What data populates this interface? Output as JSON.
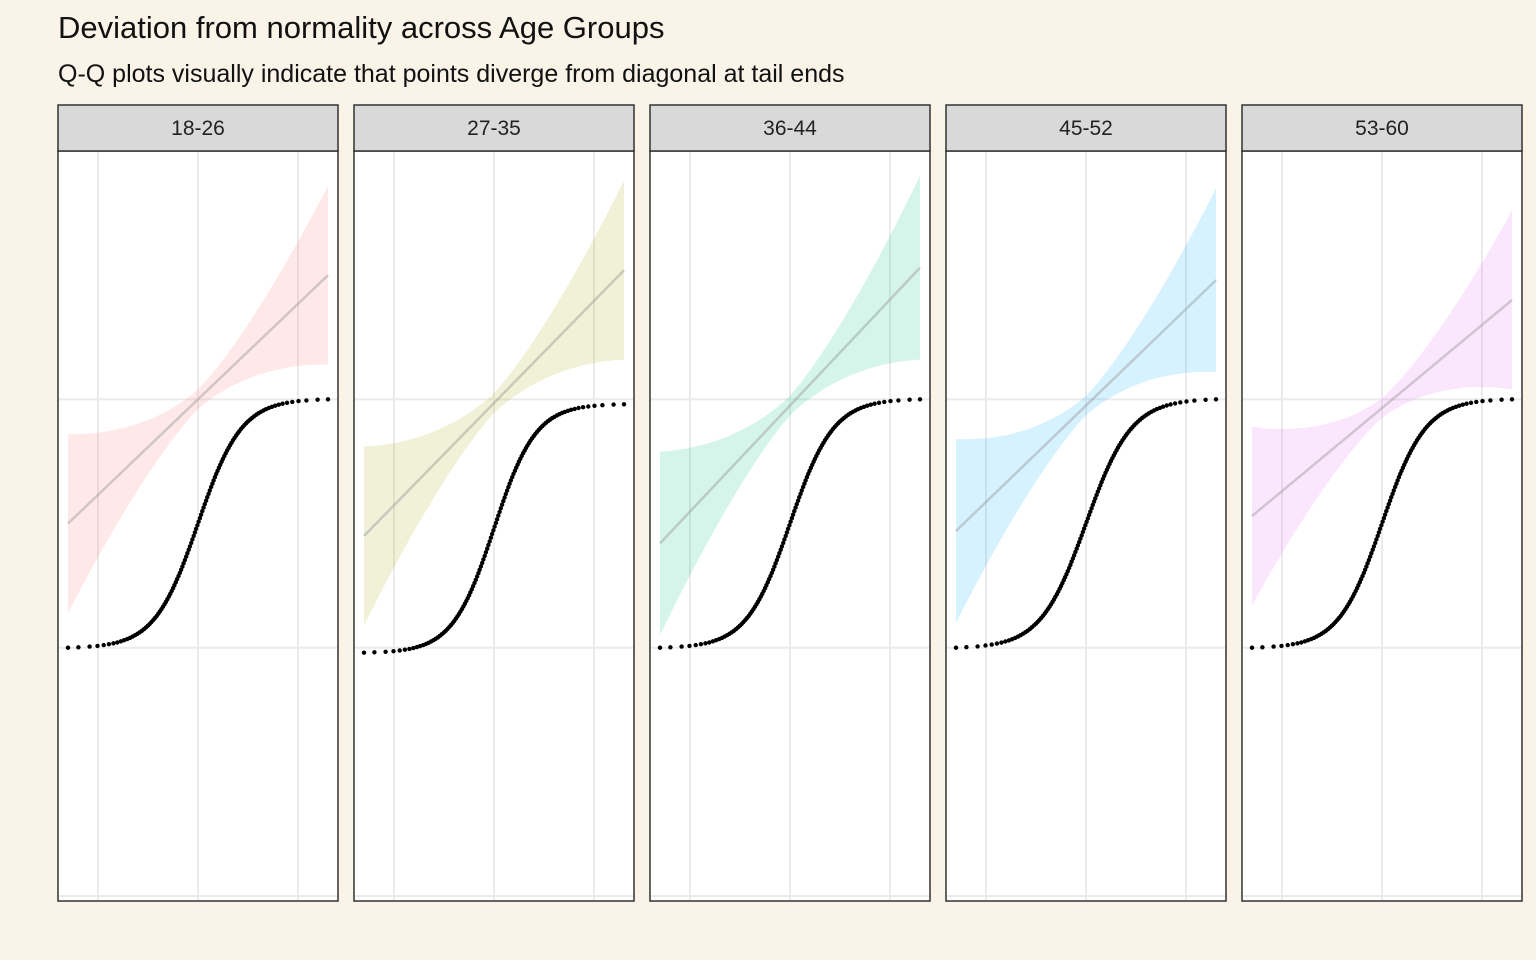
{
  "chart_data": {
    "type": "scatter",
    "title": "Deviation from normality across Age Groups",
    "subtitle": "Q-Q plots visually indicate that points diverge from diagonal at tail ends",
    "xlabel": "",
    "ylabel": "",
    "grid": true,
    "legend": "none",
    "xlim": [
      -2.8,
      2.8
    ],
    "ylim": [
      0.98,
      4.0
    ],
    "xbreaks": [
      -2,
      0,
      2
    ],
    "ybreaks": [
      1,
      2,
      3
    ],
    "series": [
      {
        "name": "18-26",
        "color": "#F8766D",
        "x_range": [
          -2.6,
          2.6
        ],
        "y_min": 2.0,
        "y_max": 3.0,
        "center": 2.55,
        "spread": 0.42,
        "line_y": [
          2.5,
          3.5
        ],
        "band_half": [
          0.32,
          0.32
        ],
        "steep": 1.15
      },
      {
        "name": "27-35",
        "color": "#A3A500",
        "x_range": [
          -2.6,
          2.6
        ],
        "y_min": 1.98,
        "y_max": 2.98,
        "center": 2.5,
        "spread": 0.42,
        "line_y": [
          2.45,
          3.52
        ],
        "band_half": [
          0.32,
          0.32
        ],
        "steep": 1.2
      },
      {
        "name": "36-44",
        "color": "#00BF7D",
        "x_range": [
          -2.6,
          2.6
        ],
        "y_min": 2.0,
        "y_max": 3.0,
        "center": 2.5,
        "spread": 0.45,
        "line_y": [
          2.42,
          3.53
        ],
        "band_half": [
          0.33,
          0.33
        ],
        "steep": 1.15
      },
      {
        "name": "45-52",
        "color": "#00B0F6",
        "x_range": [
          -2.6,
          2.6
        ],
        "y_min": 2.0,
        "y_max": 3.0,
        "center": 2.45,
        "spread": 0.42,
        "line_y": [
          2.47,
          3.48
        ],
        "band_half": [
          0.33,
          0.33
        ],
        "steep": 1.1
      },
      {
        "name": "53-60",
        "color": "#E76BF3",
        "x_range": [
          -2.6,
          2.6
        ],
        "y_min": 2.0,
        "y_max": 3.0,
        "center": 2.5,
        "spread": 0.42,
        "line_y": [
          2.53,
          3.4
        ],
        "band_half": [
          0.32,
          0.32
        ],
        "steep": 1.15
      }
    ]
  }
}
